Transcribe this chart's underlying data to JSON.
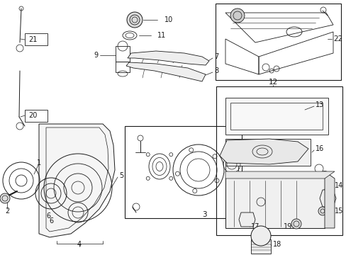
{
  "bg_color": "#ffffff",
  "fig_width": 4.89,
  "fig_height": 3.6,
  "dpi": 100,
  "col": "#1a1a1a",
  "lw": 0.7,
  "lw2": 0.55
}
